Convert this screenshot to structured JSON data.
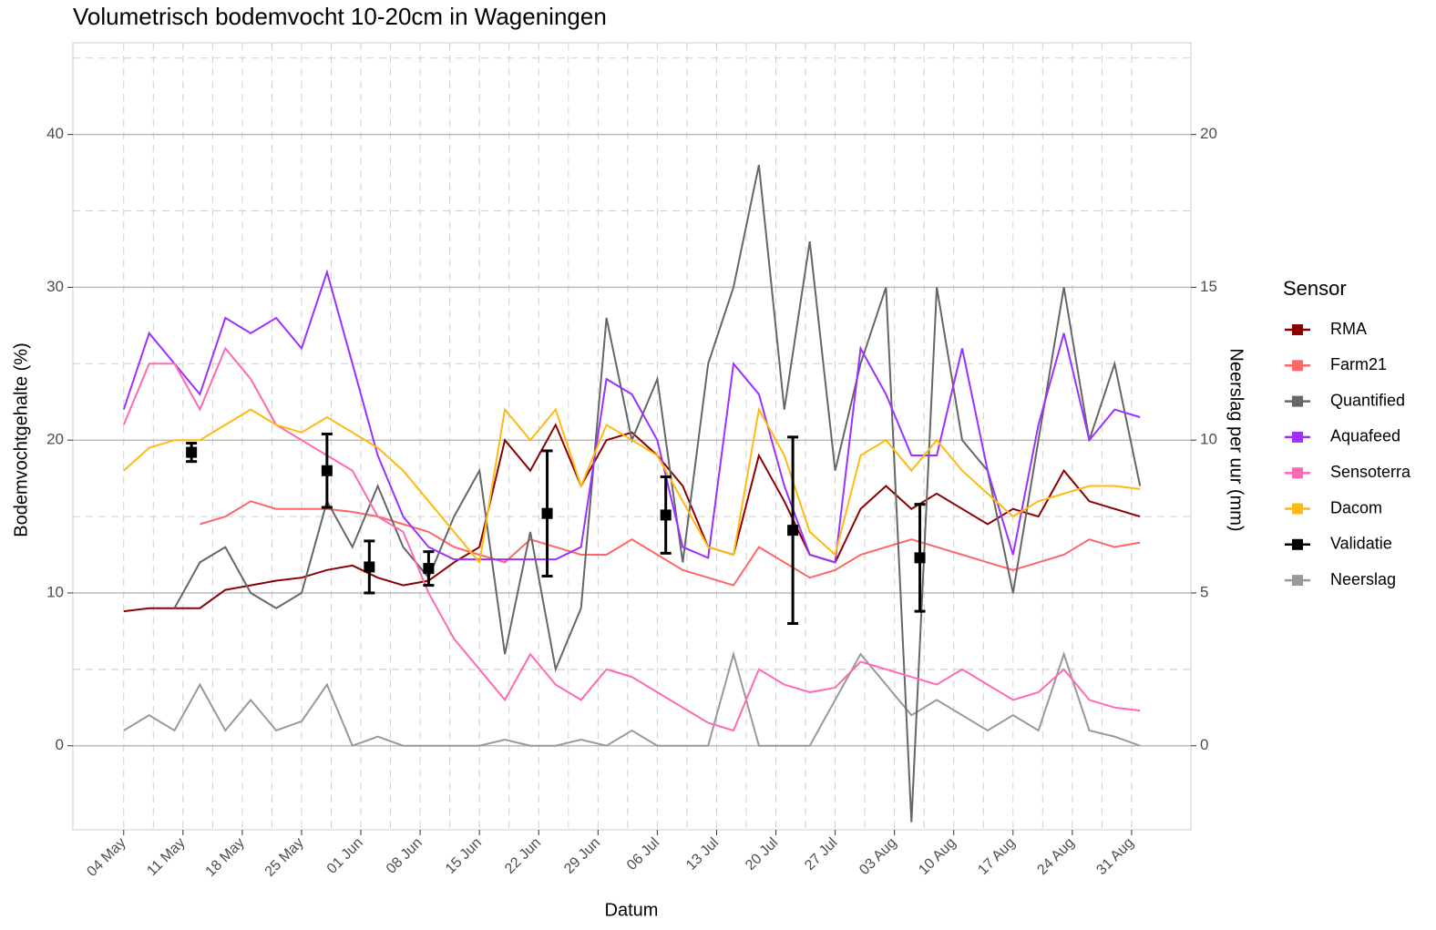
{
  "chart_data": {
    "type": "line",
    "title": "Volumetrisch bodemvocht 10-20cm in Wageningen",
    "x_label": "Datum",
    "y_label": "Bodemvochtgehalte (%)",
    "y2_label": "Neerslag per uur (mm)",
    "legend_title": "Sensor",
    "legend": "right",
    "grid": true,
    "xlim": [
      "04-28",
      "09-07"
    ],
    "xticks": [
      {
        "value": "05-04",
        "label": "04 May"
      },
      {
        "value": "05-11",
        "label": "11 May"
      },
      {
        "value": "05-18",
        "label": "18 May"
      },
      {
        "value": "05-25",
        "label": "25 May"
      },
      {
        "value": "06-01",
        "label": "01 Jun"
      },
      {
        "value": "06-08",
        "label": "08 Jun"
      },
      {
        "value": "06-15",
        "label": "15 Jun"
      },
      {
        "value": "06-22",
        "label": "22 Jun"
      },
      {
        "value": "06-29",
        "label": "29 Jun"
      },
      {
        "value": "07-06",
        "label": "06 Jul"
      },
      {
        "value": "07-13",
        "label": "13 Jul"
      },
      {
        "value": "07-20",
        "label": "20 Jul"
      },
      {
        "value": "07-27",
        "label": "27 Jul"
      },
      {
        "value": "08-03",
        "label": "03 Aug"
      },
      {
        "value": "08-10",
        "label": "10 Aug"
      },
      {
        "value": "08-17",
        "label": "17 Aug"
      },
      {
        "value": "08-24",
        "label": "24 Aug"
      },
      {
        "value": "08-31",
        "label": "31 Aug"
      }
    ],
    "ylim": [
      -5.5,
      46
    ],
    "yticks": [
      0,
      10,
      20,
      30,
      40
    ],
    "y2lim": [
      -2.75,
      23
    ],
    "y2ticks": [
      0,
      5,
      10,
      15,
      20
    ],
    "x": [
      "05-04",
      "05-07",
      "05-10",
      "05-13",
      "05-16",
      "05-19",
      "05-22",
      "05-25",
      "05-28",
      "05-31",
      "06-03",
      "06-06",
      "06-09",
      "06-12",
      "06-15",
      "06-18",
      "06-21",
      "06-24",
      "06-27",
      "06-30",
      "07-03",
      "07-06",
      "07-09",
      "07-12",
      "07-15",
      "07-18",
      "07-21",
      "07-24",
      "07-27",
      "07-30",
      "08-02",
      "08-05",
      "08-08",
      "08-11",
      "08-14",
      "08-17",
      "08-20",
      "08-23",
      "08-26",
      "08-29",
      "09-01"
    ],
    "series": [
      {
        "name": "RMA",
        "color": "#8b0000",
        "values": [
          8.8,
          9,
          9,
          9,
          10.2,
          10.5,
          10.8,
          11,
          11.5,
          11.8,
          11,
          10.5,
          10.8,
          12,
          13,
          20,
          18,
          21,
          17,
          20,
          20.5,
          19,
          17,
          13,
          12.5,
          19,
          16,
          12.5,
          12,
          15.5,
          17,
          15.5,
          16.5,
          15.5,
          14.5,
          15.5,
          15,
          18,
          16,
          15.5,
          15
        ]
      },
      {
        "name": "Farm21",
        "color": "#ff6666",
        "values": [
          null,
          null,
          null,
          14.5,
          15,
          16,
          15.5,
          15.5,
          15.5,
          15.3,
          15,
          14.5,
          14,
          13,
          12.5,
          12,
          13.5,
          13,
          12.5,
          12.5,
          13.5,
          12.5,
          11.5,
          11,
          10.5,
          13,
          12,
          11,
          11.5,
          12.5,
          13,
          13.5,
          13,
          12.5,
          12,
          11.5,
          12,
          12.5,
          13.5,
          13,
          13.3
        ]
      },
      {
        "name": "Quantified",
        "color": "#666666",
        "values": [
          null,
          null,
          9,
          12,
          13,
          10,
          9,
          10,
          16,
          13,
          17,
          13,
          11,
          15,
          18,
          6,
          14,
          5,
          9,
          28,
          20,
          24,
          12,
          25,
          30,
          38,
          22,
          33,
          18,
          25,
          30,
          -5,
          30,
          20,
          18,
          10,
          20,
          30,
          20,
          25,
          17
        ]
      },
      {
        "name": "Aquafeed",
        "color": "#9b30ff",
        "values": [
          22,
          27,
          25,
          23,
          28,
          27,
          28,
          26,
          31,
          25,
          19,
          15,
          13,
          12.2,
          12.2,
          12.2,
          12.2,
          12.2,
          13,
          24,
          23,
          20,
          13,
          12.3,
          25,
          23,
          17,
          12.5,
          12,
          26,
          23,
          19,
          19,
          26,
          18,
          12.5,
          21,
          27,
          20,
          22,
          21.5
        ]
      },
      {
        "name": "Sensoterra",
        "color": "#ff69b4",
        "values": [
          21,
          25,
          25,
          22,
          26,
          24,
          21,
          20,
          19,
          18,
          15,
          14,
          10,
          7,
          5,
          3,
          6,
          4,
          3,
          5,
          4.5,
          3.5,
          2.5,
          1.5,
          1,
          5,
          4,
          3.5,
          3.8,
          5.5,
          5,
          4.5,
          4,
          5,
          4,
          3,
          3.5,
          5,
          3,
          2.5,
          2.3
        ]
      },
      {
        "name": "Dacom",
        "color": "#ffb90f",
        "values": [
          18,
          19.5,
          20,
          20,
          21,
          22,
          21,
          20.5,
          21.5,
          20.5,
          19.5,
          18,
          16,
          14,
          12,
          22,
          20,
          22,
          17,
          21,
          20,
          19,
          16,
          13,
          12.5,
          22,
          19,
          14,
          12.5,
          19,
          20,
          18,
          20,
          18,
          16.5,
          15,
          16,
          16.5,
          17,
          17,
          16.8
        ]
      },
      {
        "name": "Validatie",
        "color": "#000000",
        "kind": "errorbar",
        "x": [
          "05-12",
          "05-28",
          "06-02",
          "06-09",
          "06-23",
          "07-07",
          "07-22",
          "08-06"
        ],
        "values": [
          19.2,
          18,
          11.7,
          11.6,
          15.2,
          15.1,
          14.1,
          12.3
        ],
        "errors": [
          0.6,
          2.4,
          1.7,
          1.1,
          4.1,
          2.5,
          6.1,
          3.5
        ]
      },
      {
        "name": "Neerslag",
        "color": "#999999",
        "axis": "y2",
        "values": [
          0.5,
          1,
          0.5,
          2,
          0.5,
          1.5,
          0.5,
          0.8,
          2,
          0,
          0.3,
          0,
          0,
          0,
          0,
          0.2,
          0,
          0,
          0.2,
          0,
          0.5,
          0,
          0,
          0,
          3,
          0,
          0,
          0,
          1.5,
          3,
          2,
          1,
          1.5,
          1,
          0.5,
          1,
          0.5,
          3,
          0.5,
          0.3,
          0
        ]
      }
    ]
  }
}
